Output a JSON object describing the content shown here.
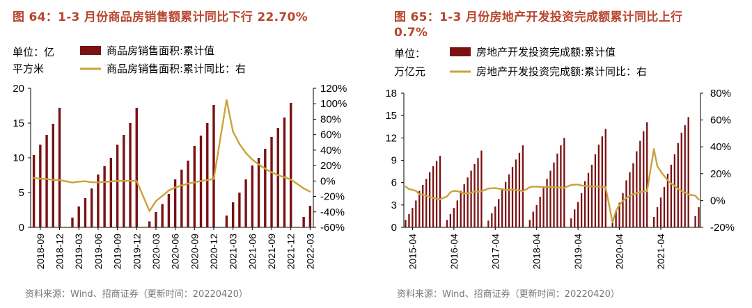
{
  "charts": [
    {
      "title_line1": "图 64：1-3 月份商品房销售额累计同比下行 22.70%",
      "title_line2": "",
      "source": "资料来源：Wind、招商证券（更新时间：20220420）",
      "unit_line1": "单位：亿",
      "unit_line2": "平方米",
      "colors": {
        "bar": "#7a1113",
        "line": "#c9a33b",
        "axis": "#000000",
        "negative_tick": "#e8262a",
        "title": "#b8452c"
      }
    },
    {
      "title_line1": "图 65：1-3 月份房地产开发投资完成额累计同比上行",
      "title_line2": "0.7%",
      "source": "资料来源：Wind、招商证券（更新时间：20220420）",
      "unit_line1": "单位：",
      "unit_line2": "万亿元",
      "colors": {
        "bar": "#7a1113",
        "line": "#c9a33b",
        "axis": "#000000",
        "negative_tick": "#e8262a",
        "title": "#b8452c"
      }
    }
  ],
  "chart_data": [
    {
      "type": "bar+line",
      "title": "图 64：1-3 月份商品房销售额累计同比下行 22.70%",
      "ylabel": "单位：亿平方米",
      "ylim": [
        0,
        20
      ],
      "y_ticks": [
        0,
        5,
        10,
        15,
        20
      ],
      "y2lim": [
        -60,
        120
      ],
      "y2_ticks": [
        "-60%",
        "-40%",
        "-20%",
        "0%",
        "20%",
        "40%",
        "60%",
        "80%",
        "100%",
        "120%"
      ],
      "y2_tick_values": [
        -60,
        -40,
        -20,
        0,
        20,
        40,
        60,
        80,
        100,
        120
      ],
      "x_tick_labels": [
        "2018-09",
        "2018-12",
        "2019-03",
        "2019-06",
        "2019-09",
        "2019-12",
        "2020-03",
        "2020-06",
        "2020-09",
        "2020-12",
        "2021-03",
        "2021-06",
        "2021-09",
        "2021-12",
        "2022-03"
      ],
      "categories": [
        "2018-08",
        "2018-09",
        "2018-10",
        "2018-11",
        "2018-12",
        "2019-01",
        "2019-02",
        "2019-03",
        "2019-04",
        "2019-05",
        "2019-06",
        "2019-07",
        "2019-08",
        "2019-09",
        "2019-10",
        "2019-11",
        "2019-12",
        "2020-01",
        "2020-02",
        "2020-03",
        "2020-04",
        "2020-05",
        "2020-06",
        "2020-07",
        "2020-08",
        "2020-09",
        "2020-10",
        "2020-11",
        "2020-12",
        "2021-01",
        "2021-02",
        "2021-03",
        "2021-04",
        "2021-05",
        "2021-06",
        "2021-07",
        "2021-08",
        "2021-09",
        "2021-10",
        "2021-11",
        "2021-12",
        "2022-01",
        "2022-02",
        "2022-03"
      ],
      "series": [
        {
          "name": "商品房销售面积:累计值",
          "kind": "bar",
          "axis": "left",
          "values": [
            10.4,
            11.9,
            13.3,
            14.9,
            17.2,
            null,
            1.4,
            3.0,
            4.2,
            5.6,
            7.6,
            8.8,
            10.0,
            11.9,
            13.3,
            15.0,
            17.2,
            null,
            0.85,
            2.2,
            3.35,
            4.8,
            6.9,
            8.3,
            9.6,
            11.7,
            13.2,
            15.0,
            17.6,
            null,
            1.7,
            3.6,
            5.0,
            6.9,
            8.9,
            10.0,
            11.3,
            13.0,
            14.3,
            15.8,
            17.9,
            null,
            1.5,
            3.1
          ]
        },
        {
          "name": "商品房销售面积:累计同比：右",
          "kind": "line",
          "axis": "right",
          "values": [
            4.0,
            3.0,
            2.5,
            1.5,
            1.3,
            null,
            -2.0,
            -0.9,
            -0.3,
            -1.6,
            -1.8,
            -1.3,
            -0.6,
            0.1,
            0.1,
            0.2,
            -0.1,
            null,
            -38.9,
            -26.0,
            -19.3,
            -12.3,
            -8.4,
            -5.8,
            -3.3,
            -1.8,
            0.0,
            1.3,
            2.6,
            null,
            104.9,
            63.8,
            48.1,
            36.3,
            27.7,
            21.5,
            15.9,
            11.3,
            7.5,
            4.8,
            1.9,
            null,
            -9.6,
            -13.8
          ]
        }
      ]
    },
    {
      "type": "bar+line",
      "title": "图 65：1-3 月份房地产开发投资完成额累计同比上行 0.7%",
      "ylabel": "单位：万亿元",
      "ylim": [
        0,
        18
      ],
      "y_ticks": [
        0,
        3,
        6,
        9,
        12,
        15,
        18
      ],
      "y2lim": [
        -20,
        80
      ],
      "y2_ticks": [
        "-20%",
        "0%",
        "20%",
        "40%",
        "60%",
        "80%"
      ],
      "y2_tick_values": [
        -20,
        0,
        20,
        40,
        60,
        80
      ],
      "x_tick_labels": [
        "2015-04",
        "2016-04",
        "2017-04",
        "2018-04",
        "2019-04",
        "2020-04",
        "2021-04"
      ],
      "categories": [
        "2015-02",
        "2015-03",
        "2015-04",
        "2015-05",
        "2015-06",
        "2015-07",
        "2015-08",
        "2015-09",
        "2015-10",
        "2015-11",
        "2015-12",
        "2016-01",
        "2016-02",
        "2016-03",
        "2016-04",
        "2016-05",
        "2016-06",
        "2016-07",
        "2016-08",
        "2016-09",
        "2016-10",
        "2016-11",
        "2016-12",
        "2017-01",
        "2017-02",
        "2017-03",
        "2017-04",
        "2017-05",
        "2017-06",
        "2017-07",
        "2017-08",
        "2017-09",
        "2017-10",
        "2017-11",
        "2017-12",
        "2018-01",
        "2018-02",
        "2018-03",
        "2018-04",
        "2018-05",
        "2018-06",
        "2018-07",
        "2018-08",
        "2018-09",
        "2018-10",
        "2018-11",
        "2018-12",
        "2019-01",
        "2019-02",
        "2019-03",
        "2019-04",
        "2019-05",
        "2019-06",
        "2019-07",
        "2019-08",
        "2019-09",
        "2019-10",
        "2019-11",
        "2019-12",
        "2020-01",
        "2020-02",
        "2020-03",
        "2020-04",
        "2020-05",
        "2020-06",
        "2020-07",
        "2020-08",
        "2020-09",
        "2020-10",
        "2020-11",
        "2020-12",
        "2021-01",
        "2021-02",
        "2021-03",
        "2021-04",
        "2021-05",
        "2021-06",
        "2021-07",
        "2021-08",
        "2021-09",
        "2021-10",
        "2021-11",
        "2021-12",
        "2022-01",
        "2022-02",
        "2022-03"
      ],
      "series": [
        {
          "name": "房地产开发投资完成额:累计值",
          "kind": "bar",
          "axis": "left",
          "values": [
            1.0,
            1.8,
            2.6,
            3.6,
            4.9,
            5.7,
            6.5,
            7.4,
            8.2,
            8.9,
            9.6,
            null,
            1.0,
            1.8,
            2.6,
            3.6,
            4.9,
            5.8,
            6.7,
            7.6,
            8.5,
            9.3,
            10.3,
            null,
            0.9,
            1.9,
            2.8,
            3.8,
            5.1,
            6.1,
            7.1,
            8.1,
            9.1,
            10.0,
            11.0,
            null,
            1.0,
            2.1,
            3.0,
            4.1,
            5.5,
            6.5,
            7.6,
            8.7,
            9.9,
            11.0,
            12.0,
            null,
            1.2,
            2.4,
            3.4,
            4.6,
            6.2,
            7.3,
            8.4,
            9.8,
            11.1,
            12.2,
            13.2,
            null,
            1.0,
            2.2,
            3.3,
            4.6,
            6.3,
            7.4,
            8.6,
            10.2,
            11.6,
            12.9,
            14.1,
            null,
            1.4,
            2.7,
            4.0,
            5.4,
            7.2,
            8.4,
            9.8,
            11.3,
            12.7,
            13.7,
            14.8,
            null,
            1.5,
            2.7
          ]
        },
        {
          "name": "房地产开发投资完成额:累计同比：右",
          "kind": "line",
          "axis": "right",
          "values": [
            10.4,
            8.5,
            8.0,
            7.2,
            4.6,
            4.3,
            3.5,
            2.6,
            2.0,
            1.3,
            1.0,
            null,
            3.0,
            6.2,
            7.2,
            7.0,
            6.1,
            5.3,
            5.4,
            5.8,
            6.6,
            6.5,
            6.9,
            null,
            8.9,
            9.1,
            9.3,
            8.8,
            8.5,
            7.9,
            7.9,
            8.1,
            7.8,
            7.5,
            7.0,
            null,
            9.9,
            10.4,
            10.3,
            10.2,
            9.7,
            10.2,
            10.1,
            9.9,
            9.7,
            9.7,
            9.5,
            null,
            11.6,
            11.8,
            11.9,
            11.2,
            10.9,
            10.6,
            10.5,
            10.5,
            10.3,
            10.2,
            9.9,
            null,
            -16.3,
            -7.7,
            -3.3,
            -0.3,
            1.9,
            3.4,
            4.6,
            5.6,
            6.3,
            6.8,
            7.0,
            null,
            38.3,
            25.6,
            21.6,
            18.3,
            15.0,
            12.7,
            10.9,
            8.8,
            7.2,
            6.0,
            4.4,
            null,
            3.7,
            0.7
          ]
        }
      ]
    }
  ]
}
